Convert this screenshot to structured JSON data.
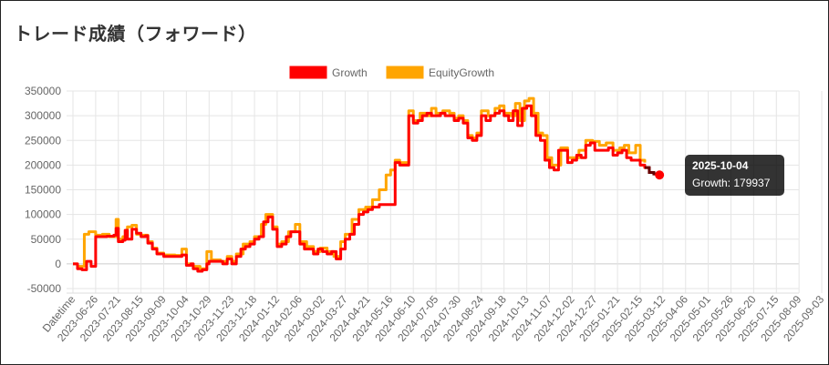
{
  "page": {
    "title": "トレード成績（フォワード）"
  },
  "colors": {
    "growth": "#ff0000",
    "equity": "#ffa500",
    "highlight": "#660000",
    "grid": "#e5e5e5"
  },
  "tooltip": {
    "date": "2025-10-04",
    "text": "Growth: 179937"
  },
  "chart_data": {
    "type": "line",
    "xlabel": "",
    "ylabel": "",
    "ylim": [
      -50000,
      350000
    ],
    "yticks": [
      -50000,
      0,
      50000,
      100000,
      150000,
      200000,
      250000,
      300000,
      350000
    ],
    "xticks": [
      "Datetime",
      "2023-06-26",
      "2023-07-21",
      "2023-08-15",
      "2023-09-09",
      "2023-10-04",
      "2023-10-29",
      "2023-11-23",
      "2023-12-18",
      "2024-01-12",
      "2024-02-06",
      "2024-03-02",
      "2024-03-27",
      "2024-04-21",
      "2024-05-16",
      "2024-06-10",
      "2024-07-05",
      "2024-07-30",
      "2024-08-24",
      "2024-09-18",
      "2024-10-13",
      "2024-11-07",
      "2024-12-02",
      "2024-12-27",
      "2025-01-21",
      "2025-02-15",
      "2025-03-12",
      "2025-04-06",
      "2025-05-01",
      "2025-05-26",
      "2025-06-20",
      "2025-07-15",
      "2025-08-09",
      "2025-09-03"
    ],
    "legend": {
      "position": "top"
    },
    "grid": true,
    "series": [
      {
        "name": "Growth",
        "color": "#ff0000",
        "points": [
          [
            0,
            0
          ],
          [
            0.2,
            -10000
          ],
          [
            0.4,
            -12000
          ],
          [
            0.6,
            5000
          ],
          [
            0.8,
            -5000
          ],
          [
            1.0,
            55000
          ],
          [
            1.3,
            55000
          ],
          [
            1.5,
            56000
          ],
          [
            1.8,
            58000
          ],
          [
            1.9,
            72000
          ],
          [
            2.0,
            45000
          ],
          [
            2.2,
            48000
          ],
          [
            2.3,
            68000
          ],
          [
            2.4,
            50000
          ],
          [
            2.6,
            70000
          ],
          [
            2.8,
            62000
          ],
          [
            3.0,
            55000
          ],
          [
            3.2,
            57000
          ],
          [
            3.3,
            42000
          ],
          [
            3.5,
            30000
          ],
          [
            3.7,
            20000
          ],
          [
            4.0,
            15000
          ],
          [
            4.5,
            15000
          ],
          [
            4.8,
            18000
          ],
          [
            5.0,
            -3000
          ],
          [
            5.2,
            0
          ],
          [
            5.3,
            -10000
          ],
          [
            5.5,
            -15000
          ],
          [
            5.7,
            -12000
          ],
          [
            5.9,
            0
          ],
          [
            6.0,
            5000
          ],
          [
            6.3,
            5000
          ],
          [
            6.6,
            0
          ],
          [
            6.8,
            10000
          ],
          [
            7.0,
            0
          ],
          [
            7.2,
            15000
          ],
          [
            7.4,
            30000
          ],
          [
            7.6,
            35000
          ],
          [
            7.8,
            40000
          ],
          [
            8.0,
            50000
          ],
          [
            8.2,
            55000
          ],
          [
            8.4,
            85000
          ],
          [
            8.6,
            95000
          ],
          [
            8.8,
            70000
          ],
          [
            9.0,
            35000
          ],
          [
            9.2,
            40000
          ],
          [
            9.4,
            55000
          ],
          [
            9.6,
            65000
          ],
          [
            9.8,
            65000
          ],
          [
            10.0,
            40000
          ],
          [
            10.2,
            30000
          ],
          [
            10.4,
            30000
          ],
          [
            10.6,
            20000
          ],
          [
            10.8,
            30000
          ],
          [
            11.0,
            25000
          ],
          [
            11.2,
            20000
          ],
          [
            11.4,
            25000
          ],
          [
            11.6,
            10000
          ],
          [
            11.8,
            30000
          ],
          [
            12.0,
            50000
          ],
          [
            12.2,
            60000
          ],
          [
            12.4,
            80000
          ],
          [
            12.6,
            100000
          ],
          [
            12.8,
            105000
          ],
          [
            13.0,
            110000
          ],
          [
            13.2,
            115000
          ],
          [
            13.5,
            120000
          ],
          [
            14.0,
            120000
          ],
          [
            14.2,
            205000
          ],
          [
            14.4,
            200000
          ],
          [
            14.6,
            200000
          ],
          [
            14.8,
            300000
          ],
          [
            15.0,
            285000
          ],
          [
            15.2,
            290000
          ],
          [
            15.4,
            300000
          ],
          [
            15.6,
            305000
          ],
          [
            15.8,
            300000
          ],
          [
            16.0,
            300000
          ],
          [
            16.2,
            305000
          ],
          [
            16.4,
            300000
          ],
          [
            16.6,
            300000
          ],
          [
            16.8,
            290000
          ],
          [
            17.0,
            295000
          ],
          [
            17.2,
            285000
          ],
          [
            17.4,
            255000
          ],
          [
            17.6,
            250000
          ],
          [
            17.8,
            260000
          ],
          [
            18.0,
            300000
          ],
          [
            18.2,
            290000
          ],
          [
            18.4,
            300000
          ],
          [
            18.6,
            305000
          ],
          [
            18.8,
            310000
          ],
          [
            19.0,
            300000
          ],
          [
            19.2,
            290000
          ],
          [
            19.4,
            310000
          ],
          [
            19.6,
            280000
          ],
          [
            19.8,
            315000
          ],
          [
            20.0,
            320000
          ],
          [
            20.2,
            300000
          ],
          [
            20.4,
            260000
          ],
          [
            20.6,
            250000
          ],
          [
            20.8,
            210000
          ],
          [
            21.0,
            195000
          ],
          [
            21.2,
            190000
          ],
          [
            21.4,
            230000
          ],
          [
            21.6,
            230000
          ],
          [
            21.8,
            205000
          ],
          [
            22.0,
            210000
          ],
          [
            22.2,
            220000
          ],
          [
            22.4,
            215000
          ],
          [
            22.6,
            240000
          ],
          [
            22.8,
            245000
          ],
          [
            23.0,
            230000
          ],
          [
            23.2,
            230000
          ],
          [
            23.4,
            230000
          ],
          [
            23.6,
            235000
          ],
          [
            23.8,
            220000
          ],
          [
            24.0,
            225000
          ],
          [
            24.2,
            230000
          ],
          [
            24.4,
            215000
          ],
          [
            24.6,
            210000
          ],
          [
            24.8,
            210000
          ],
          [
            25.0,
            200000
          ],
          [
            25.2,
            195000
          ],
          [
            25.4,
            185000
          ],
          [
            25.6,
            182000
          ],
          [
            25.85,
            179937
          ]
        ]
      },
      {
        "name": "EquityGrowth",
        "color": "#ffa500",
        "points": [
          [
            0,
            0
          ],
          [
            0.2,
            -5000
          ],
          [
            0.5,
            60000
          ],
          [
            0.7,
            65000
          ],
          [
            1.0,
            58000
          ],
          [
            1.3,
            60000
          ],
          [
            1.6,
            55000
          ],
          [
            1.9,
            90000
          ],
          [
            2.0,
            50000
          ],
          [
            2.2,
            55000
          ],
          [
            2.4,
            75000
          ],
          [
            2.6,
            78000
          ],
          [
            2.8,
            60000
          ],
          [
            3.0,
            58000
          ],
          [
            3.3,
            45000
          ],
          [
            3.5,
            32000
          ],
          [
            3.7,
            22000
          ],
          [
            4.0,
            18000
          ],
          [
            4.5,
            17000
          ],
          [
            4.8,
            30000
          ],
          [
            5.0,
            0
          ],
          [
            5.3,
            -5000
          ],
          [
            5.6,
            -10000
          ],
          [
            5.9,
            25000
          ],
          [
            6.1,
            8000
          ],
          [
            6.5,
            5000
          ],
          [
            6.8,
            15000
          ],
          [
            7.0,
            5000
          ],
          [
            7.2,
            20000
          ],
          [
            7.5,
            40000
          ],
          [
            7.8,
            45000
          ],
          [
            8.0,
            55000
          ],
          [
            8.3,
            80000
          ],
          [
            8.5,
            100000
          ],
          [
            8.8,
            75000
          ],
          [
            9.0,
            40000
          ],
          [
            9.2,
            45000
          ],
          [
            9.5,
            65000
          ],
          [
            9.8,
            80000
          ],
          [
            10.0,
            45000
          ],
          [
            10.3,
            35000
          ],
          [
            10.6,
            25000
          ],
          [
            10.9,
            32000
          ],
          [
            11.2,
            25000
          ],
          [
            11.5,
            15000
          ],
          [
            11.8,
            45000
          ],
          [
            12.0,
            60000
          ],
          [
            12.3,
            90000
          ],
          [
            12.6,
            110000
          ],
          [
            12.9,
            115000
          ],
          [
            13.2,
            130000
          ],
          [
            13.5,
            150000
          ],
          [
            13.8,
            180000
          ],
          [
            14.0,
            190000
          ],
          [
            14.2,
            210000
          ],
          [
            14.4,
            205000
          ],
          [
            14.6,
            205000
          ],
          [
            14.8,
            310000
          ],
          [
            15.0,
            290000
          ],
          [
            15.3,
            305000
          ],
          [
            15.6,
            300000
          ],
          [
            15.8,
            315000
          ],
          [
            16.0,
            305000
          ],
          [
            16.3,
            310000
          ],
          [
            16.6,
            305000
          ],
          [
            16.8,
            295000
          ],
          [
            17.0,
            300000
          ],
          [
            17.2,
            290000
          ],
          [
            17.4,
            260000
          ],
          [
            17.6,
            255000
          ],
          [
            17.8,
            265000
          ],
          [
            18.0,
            310000
          ],
          [
            18.3,
            300000
          ],
          [
            18.6,
            315000
          ],
          [
            18.8,
            320000
          ],
          [
            19.0,
            305000
          ],
          [
            19.3,
            300000
          ],
          [
            19.5,
            325000
          ],
          [
            19.7,
            290000
          ],
          [
            19.9,
            330000
          ],
          [
            20.1,
            335000
          ],
          [
            20.3,
            305000
          ],
          [
            20.5,
            265000
          ],
          [
            20.7,
            260000
          ],
          [
            20.9,
            215000
          ],
          [
            21.1,
            200000
          ],
          [
            21.3,
            200000
          ],
          [
            21.5,
            235000
          ],
          [
            21.8,
            215000
          ],
          [
            22.0,
            215000
          ],
          [
            22.3,
            230000
          ],
          [
            22.6,
            250000
          ],
          [
            22.9,
            248000
          ],
          [
            23.2,
            240000
          ],
          [
            23.5,
            245000
          ],
          [
            23.8,
            230000
          ],
          [
            24.1,
            235000
          ],
          [
            24.3,
            240000
          ],
          [
            24.5,
            225000
          ],
          [
            24.8,
            240000
          ],
          [
            25.0,
            210000
          ],
          [
            25.2,
            205000
          ]
        ]
      }
    ]
  }
}
